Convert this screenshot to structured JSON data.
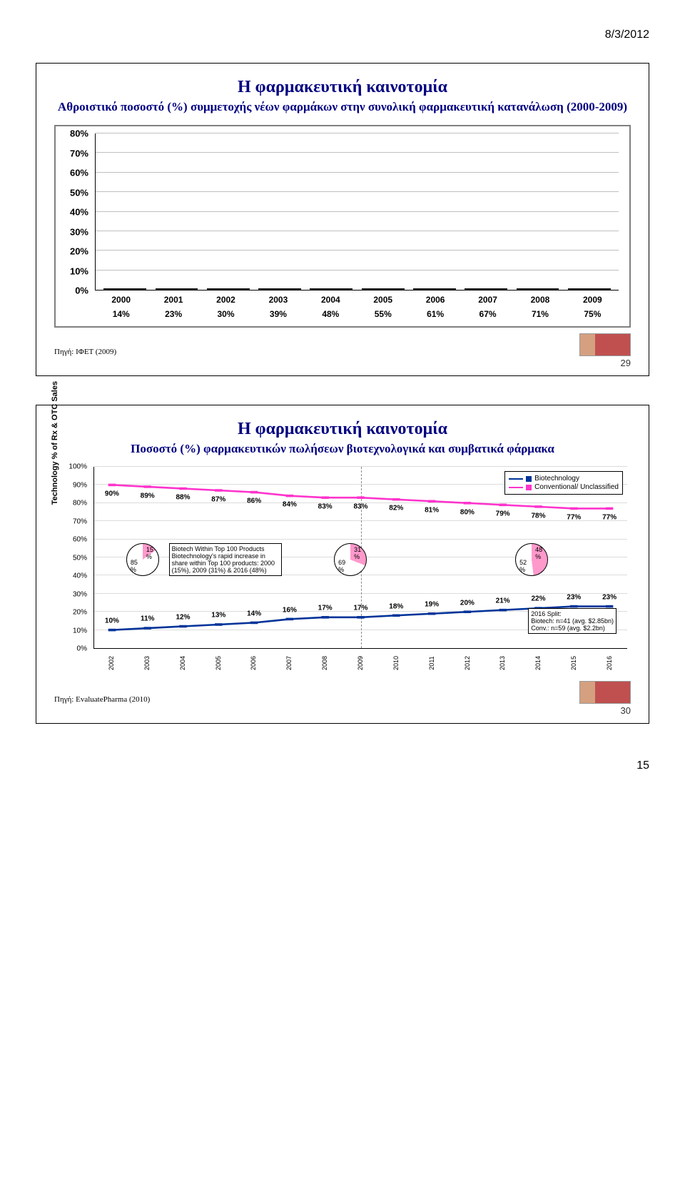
{
  "header_date": "8/3/2012",
  "page_number": "15",
  "slide1": {
    "number": "29",
    "title": "Η φαρμακευτική καινοτομία",
    "subtitle": "Αθροιστικό ποσοστό (%) συμμετοχής νέων φαρμάκων στην συνολική φαρμακευτική κατανάλωση (2000-2009)",
    "source": "Πηγή: ΙΦΕΤ (2009)",
    "chart": {
      "type": "bar",
      "y_ticks": [
        "0%",
        "10%",
        "20%",
        "30%",
        "40%",
        "50%",
        "60%",
        "70%",
        "80%"
      ],
      "ymax": 80,
      "categories": [
        "2000",
        "2001",
        "2002",
        "2003",
        "2004",
        "2005",
        "2006",
        "2007",
        "2008",
        "2009"
      ],
      "values": [
        14,
        23,
        30,
        39,
        48,
        55,
        61,
        67,
        71,
        75
      ],
      "pct_labels": [
        "14%",
        "23%",
        "30%",
        "39%",
        "48%",
        "55%",
        "61%",
        "67%",
        "71%",
        "75%"
      ],
      "bar_color": "#ffff00",
      "grid_color": "#bfbfbf",
      "border_color": "#808080"
    }
  },
  "slide2": {
    "number": "30",
    "title": "Η φαρμακευτική καινοτομία",
    "subtitle": "Ποσοστό (%) φαρμακευτικών πωλήσεων βιοτεχνολογικά και συμβατικά φάρμακα",
    "source": "Πηγή: EvaluatePharma (2010)",
    "chart": {
      "type": "line",
      "yaxis_label": "Technology % of Rx & OTC Sales",
      "y_ticks": [
        "0%",
        "10%",
        "20%",
        "30%",
        "40%",
        "50%",
        "60%",
        "70%",
        "80%",
        "90%",
        "100%"
      ],
      "ymax": 100,
      "years": [
        "2002",
        "2003",
        "2004",
        "2005",
        "2006",
        "2007",
        "2008",
        "2009",
        "2010",
        "2011",
        "2012",
        "2013",
        "2014",
        "2015",
        "2016"
      ],
      "series": {
        "conventional": {
          "label": "Conventional/ Unclassified",
          "color": "#ff33cc",
          "marker": "square",
          "values": [
            90,
            89,
            88,
            87,
            86,
            84,
            83,
            83,
            82,
            81,
            80,
            79,
            78,
            77,
            77
          ],
          "labels": [
            "90%",
            "89%",
            "88%",
            "87%",
            "86%",
            "84%",
            "83%",
            "83%",
            "82%",
            "81%",
            "80%",
            "79%",
            "78%",
            "77%",
            "77%"
          ]
        },
        "biotech": {
          "label": "Biotechnology",
          "color": "#003399",
          "marker": "diamond",
          "values": [
            10,
            11,
            12,
            13,
            14,
            16,
            17,
            17,
            18,
            19,
            20,
            21,
            22,
            23,
            23
          ],
          "labels": [
            "10%",
            "11%",
            "12%",
            "13%",
            "14%",
            "16%",
            "17%",
            "17%",
            "18%",
            "19%",
            "20%",
            "21%",
            "22%",
            "23%",
            "23%"
          ]
        }
      },
      "vline_year": "2009",
      "biotech_note": "Biotech Within Top 100 Products\nBiotechnology's rapid increase in share within Top 100 products: 2000 (15%), 2009 (31%) & 2016 (48%)",
      "split_note": "2016 Split:\nBiotech: n=41 (avg. $2.85bn)\nConv.: n=59 (avg. $2.2bn)",
      "pies": [
        {
          "pink": 15,
          "white": 85,
          "lbl_pink": "15\n%",
          "lbl_white": "85\n%"
        },
        {
          "pink": 31,
          "white": 69,
          "lbl_pink": "31\n%",
          "lbl_white": "69\n%"
        },
        {
          "pink": 48,
          "white": 52,
          "lbl_pink": "48\n%",
          "lbl_white": "52\n%"
        }
      ],
      "pie_pink": "#ff99cc",
      "pie_white": "#ffffff"
    }
  }
}
